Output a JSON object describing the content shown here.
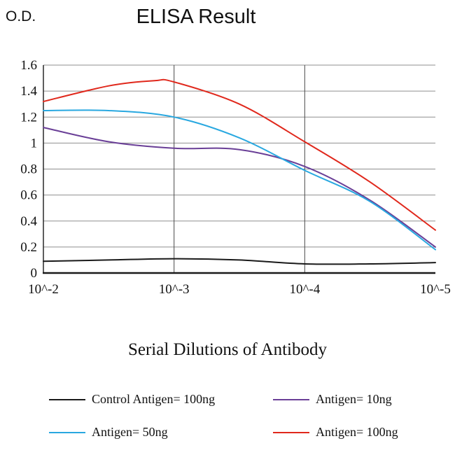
{
  "chart_data": {
    "type": "line",
    "title": "ELISA Result",
    "xlabel": "Serial Dilutions of Antibody",
    "ylabel": "O.D.",
    "xlim": [
      0,
      3
    ],
    "ylim": [
      0,
      1.6
    ],
    "x_ticks": [
      0,
      1,
      2,
      3
    ],
    "x_tick_labels": [
      "10^-2",
      "10^-3",
      "10^-4",
      "10^-5"
    ],
    "y_ticks": [
      0,
      0.2,
      0.4,
      0.6,
      0.8,
      1,
      1.2,
      1.4,
      1.6
    ],
    "grid": true,
    "legend_position": "bottom",
    "colors": {
      "axis": "#1a1a1a",
      "grid_horizontal": "#8f8f8f",
      "grid_vertical": "#4a4a4a",
      "text": "#111111"
    },
    "series": [
      {
        "name": "Control Antigen= 100ng",
        "color": "#1a1a1a",
        "x": [
          0,
          0.5,
          1,
          1.5,
          2,
          2.5,
          3
        ],
        "values": [
          0.09,
          0.1,
          0.11,
          0.1,
          0.07,
          0.07,
          0.08
        ]
      },
      {
        "name": "Antigen= 10ng",
        "color": "#6a3f97",
        "x": [
          0,
          0.5,
          1,
          1.5,
          2,
          2.5,
          3
        ],
        "values": [
          1.12,
          1.01,
          0.96,
          0.95,
          0.82,
          0.56,
          0.2
        ]
      },
      {
        "name": "Antigen= 50ng",
        "color": "#29a8e0",
        "x": [
          0,
          0.5,
          1,
          1.5,
          2,
          2.5,
          3
        ],
        "values": [
          1.25,
          1.25,
          1.2,
          1.04,
          0.79,
          0.55,
          0.18
        ]
      },
      {
        "name": "Antigen= 100ng",
        "color": "#e0281c",
        "x": [
          0,
          0.5,
          0.85,
          1,
          1.5,
          2,
          2.5,
          3
        ],
        "values": [
          1.32,
          1.44,
          1.48,
          1.47,
          1.3,
          1.01,
          0.7,
          0.33
        ]
      }
    ]
  }
}
